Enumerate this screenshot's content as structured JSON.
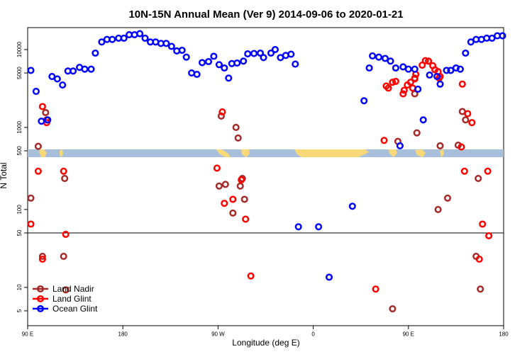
{
  "chart_data": {
    "type": "scatter",
    "title": "10N-15N Annual Mean (Ver 9)   2014-09-06 to 2020-01-21",
    "xlabel": "Longitude (deg E)",
    "ylabel": "N Total",
    "x_ticks": [
      {
        "value": 0,
        "label": "90 E"
      },
      {
        "value": 90,
        "label": "180"
      },
      {
        "value": 180,
        "label": "90 W"
      },
      {
        "value": 270,
        "label": "0"
      },
      {
        "value": 360,
        "label": "90 E"
      },
      {
        "value": 450,
        "label": "180"
      }
    ],
    "xlim": [
      0,
      450
    ],
    "y_ticks": [
      5,
      10,
      50,
      100,
      500,
      1000,
      5000,
      10000
    ],
    "y_ticks_lower": [
      5,
      10,
      50,
      100
    ],
    "y_ticks_upper": [
      500,
      1000,
      5000,
      10000
    ],
    "lower_panel": {
      "scale": "log",
      "ylim": [
        4,
        500
      ],
      "break_line": 50
    },
    "upper_panel": {
      "scale": "log",
      "ylim": [
        420,
        25000
      ]
    },
    "legend_position": "bottom-left",
    "colors": {
      "land_nadir": "#a52a2a",
      "land_glint": "#ff0000",
      "ocean_glint": "#0000ff",
      "ocean_band": "#a8bfdc",
      "land_band": "#f8d878"
    },
    "series": [
      {
        "name": "Land Nadir",
        "color": "#a52a2a",
        "points": [
          [
            3,
            140
          ],
          [
            10,
            570
          ],
          [
            14,
            25
          ],
          [
            17,
            1550
          ],
          [
            18,
            1250
          ],
          [
            34,
            25
          ],
          [
            35,
            250
          ],
          [
            36,
            9.3
          ],
          [
            181,
            200
          ],
          [
            183,
            1400
          ],
          [
            187,
            210
          ],
          [
            194,
            90
          ],
          [
            197,
            1000
          ],
          [
            199,
            730
          ],
          [
            201,
            200
          ],
          [
            203,
            250
          ],
          [
            205,
            135
          ],
          [
            345,
            5.3
          ],
          [
            350,
            660
          ],
          [
            366,
            4300
          ],
          [
            366,
            2700
          ],
          [
            368,
            850
          ],
          [
            388,
            100
          ],
          [
            390,
            580
          ],
          [
            397,
            140
          ],
          [
            407,
            590
          ],
          [
            411,
            1600
          ],
          [
            414,
            1250
          ],
          [
            424,
            25
          ],
          [
            426,
            250
          ],
          [
            428,
            9.5
          ]
        ]
      },
      {
        "name": "Land Glint",
        "color": "#ff0000",
        "points": [
          [
            3,
            65
          ],
          [
            10,
            310
          ],
          [
            14,
            23
          ],
          [
            14,
            1850
          ],
          [
            18,
            1150
          ],
          [
            34,
            310
          ],
          [
            36,
            48
          ],
          [
            179,
            340
          ],
          [
            184,
            1580
          ],
          [
            186,
            120
          ],
          [
            194,
            135
          ],
          [
            202,
            240
          ],
          [
            206,
            75
          ],
          [
            211,
            14
          ],
          [
            329,
            9.5
          ],
          [
            337,
            680
          ],
          [
            339,
            3400
          ],
          [
            341,
            3200
          ],
          [
            345,
            3800
          ],
          [
            348,
            3900
          ],
          [
            355,
            2700
          ],
          [
            356,
            3000
          ],
          [
            359,
            3500
          ],
          [
            362,
            3800
          ],
          [
            364,
            3200
          ],
          [
            366,
            4200
          ],
          [
            367,
            4800
          ],
          [
            373,
            6300
          ],
          [
            376,
            7200
          ],
          [
            379,
            7100
          ],
          [
            383,
            6200
          ],
          [
            385,
            5500
          ],
          [
            388,
            5200
          ],
          [
            389,
            4300
          ],
          [
            390,
            4500
          ],
          [
            410,
            560
          ],
          [
            411,
            3600
          ],
          [
            413,
            310
          ],
          [
            416,
            1500
          ],
          [
            420,
            1150
          ],
          [
            427,
            23
          ],
          [
            435,
            310
          ],
          [
            436,
            46
          ],
          [
            430,
            65
          ]
        ]
      },
      {
        "name": "Ocean Glint",
        "color": "#0000ff",
        "points": [
          [
            3,
            5400
          ],
          [
            8,
            2900
          ],
          [
            13,
            1200
          ],
          [
            19,
            1250
          ],
          [
            23,
            4500
          ],
          [
            28,
            4200
          ],
          [
            33,
            3500
          ],
          [
            38,
            5300
          ],
          [
            43,
            5300
          ],
          [
            49,
            5900
          ],
          [
            54,
            5600
          ],
          [
            60,
            5600
          ],
          [
            64,
            9000
          ],
          [
            70,
            12500
          ],
          [
            75,
            13500
          ],
          [
            80,
            13500
          ],
          [
            86,
            14000
          ],
          [
            91,
            14000
          ],
          [
            96,
            15500
          ],
          [
            101,
            15500
          ],
          [
            106,
            16000
          ],
          [
            111,
            14000
          ],
          [
            116,
            12500
          ],
          [
            121,
            12500
          ],
          [
            126,
            12000
          ],
          [
            131,
            12000
          ],
          [
            136,
            11000
          ],
          [
            141,
            9600
          ],
          [
            146,
            9800
          ],
          [
            150,
            8000
          ],
          [
            155,
            5000
          ],
          [
            160,
            4800
          ],
          [
            165,
            6800
          ],
          [
            171,
            7000
          ],
          [
            176,
            8200
          ],
          [
            181,
            6400
          ],
          [
            186,
            5800
          ],
          [
            190,
            4300
          ],
          [
            193,
            6600
          ],
          [
            198,
            6700
          ],
          [
            204,
            7100
          ],
          [
            208,
            8800
          ],
          [
            214,
            8900
          ],
          [
            220,
            9000
          ],
          [
            223,
            7900
          ],
          [
            230,
            9000
          ],
          [
            234,
            10000
          ],
          [
            239,
            7900
          ],
          [
            244,
            8400
          ],
          [
            249,
            8700
          ],
          [
            253,
            6500
          ],
          [
            256,
            60
          ],
          [
            275,
            60
          ],
          [
            285,
            13.5
          ],
          [
            307,
            110
          ],
          [
            318,
            2200
          ],
          [
            323,
            5800
          ],
          [
            326,
            8300
          ],
          [
            332,
            8000
          ],
          [
            338,
            7700
          ],
          [
            343,
            7100
          ],
          [
            348,
            5800
          ],
          [
            352,
            580
          ],
          [
            355,
            6000
          ],
          [
            360,
            5600
          ],
          [
            366,
            5600
          ],
          [
            369,
            3100
          ],
          [
            374,
            1250
          ],
          [
            380,
            4700
          ],
          [
            387,
            4500
          ],
          [
            390,
            3600
          ],
          [
            396,
            5400
          ],
          [
            400,
            5400
          ],
          [
            405,
            5800
          ],
          [
            409,
            5600
          ],
          [
            414,
            9000
          ],
          [
            419,
            12500
          ],
          [
            424,
            13500
          ],
          [
            429,
            13500
          ],
          [
            434,
            14000
          ],
          [
            439,
            14000
          ],
          [
            444,
            15000
          ],
          [
            449,
            15000
          ]
        ]
      }
    ],
    "legend": [
      "Land Nadir",
      "Land Glint",
      "Ocean Glint"
    ]
  }
}
